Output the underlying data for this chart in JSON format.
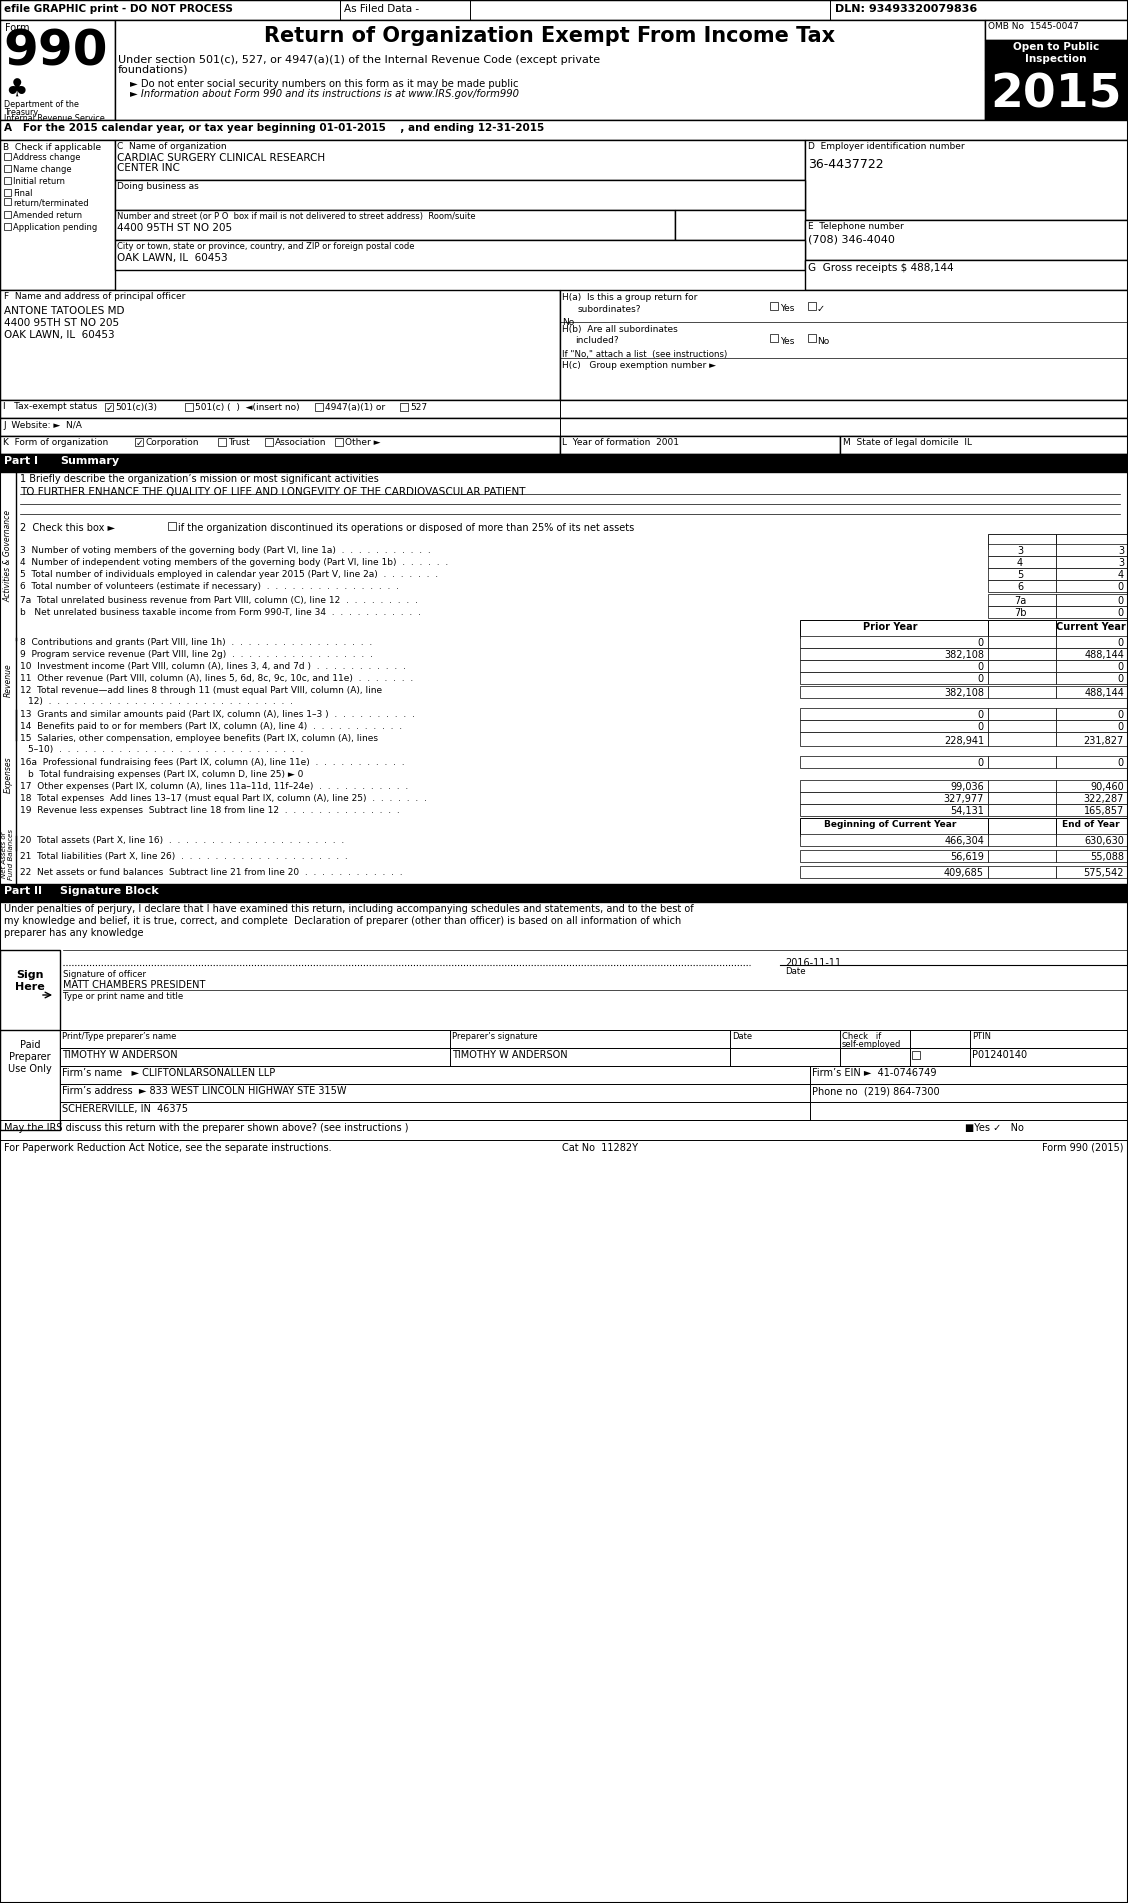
{
  "title": "Return of Organization Exempt From Income Tax",
  "form_number": "990",
  "year": "2015",
  "omb": "OMB No  1545-0047",
  "open_to_public": "Open to Public\nInspection",
  "efile_header": "efile GRAPHIC print - DO NOT PROCESS",
  "as_filed": "As Filed Data -",
  "dln": "DLN: 93493320079836",
  "under_section_1": "Under section 501(c), 527, or 4947(a)(1) of the Internal Revenue Code (except private",
  "under_section_2": "foundations)",
  "bullet1": "► Do not enter social security numbers on this form as it may be made public",
  "bullet2": "► Information about Form 990 and its instructions is at www.IRS.gov/form990",
  "section_a": "A   For the 2015 calendar year, or tax year beginning 01-01-2015    , and ending 12-31-2015",
  "org_name_1": "CARDIAC SURGERY CLINICAL RESEARCH",
  "org_name_2": "CENTER INC",
  "doing_business": "Doing business as",
  "address_label": "Number and street (or P O  box if mail is not delivered to street address)  Room/suite",
  "address": "4400 95TH ST NO 205",
  "city_label": "City or town, state or province, country, and ZIP or foreign postal code",
  "city": "OAK LAWN, IL  60453",
  "ein": "36-4437722",
  "phone": "(708) 346-4040",
  "gross_receipts": "G  Gross receipts $ 488,144",
  "principal_name": "ANTONE TATOOLES MD",
  "principal_addr1": "4400 95TH ST NO 205",
  "principal_addr2": "OAK LAWN, IL  60453",
  "line1_value": "TO FURTHER ENHANCE THE QUALITY OF LIFE AND LONGEVITY OF THE CARDIOVASCULAR PATIENT",
  "prior_year": "Prior Year",
  "current_year": "Current Year",
  "beg_of_year": "Beginning of Current Year",
  "end_of_year": "End of Year",
  "sig_text_1": "Under penalties of perjury, I declare that I have examined this return, including accompanying schedules and statements, and to the best of",
  "sig_text_2": "my knowledge and belief, it is true, correct, and complete  Declaration of preparer (other than officer) is based on all information of which",
  "sig_text_3": "preparer has any knowledge",
  "date_val": "2016-11-11",
  "sig_name": "MATT CHAMBERS PRESIDENT",
  "preparer_name": "TIMOTHY W ANDERSON",
  "preparer_sig": "TIMOTHY W ANDERSON",
  "ptin": "P01240140",
  "firm_name": "Firm’s name   ► CLIFTONLARSONALLEN LLP",
  "firm_ein": "Firm’s EIN ►  41-0746749",
  "firm_address": "Firm’s address  ► 833 WEST LINCOLN HIGHWAY STE 315W",
  "firm_phone": "Phone no  (219) 864-7300",
  "firm_city": "SCHERERVILLE, IN  46375",
  "discuss_label": "May the IRS discuss this return with the preparer shown above? (see instructions )",
  "paperwork_label": "For Paperwork Reduction Act Notice, see the separate instructions.",
  "cat_no": "Cat No  11282Y",
  "form_footer": "Form 990 (2015)",
  "bg_color": "#ffffff"
}
